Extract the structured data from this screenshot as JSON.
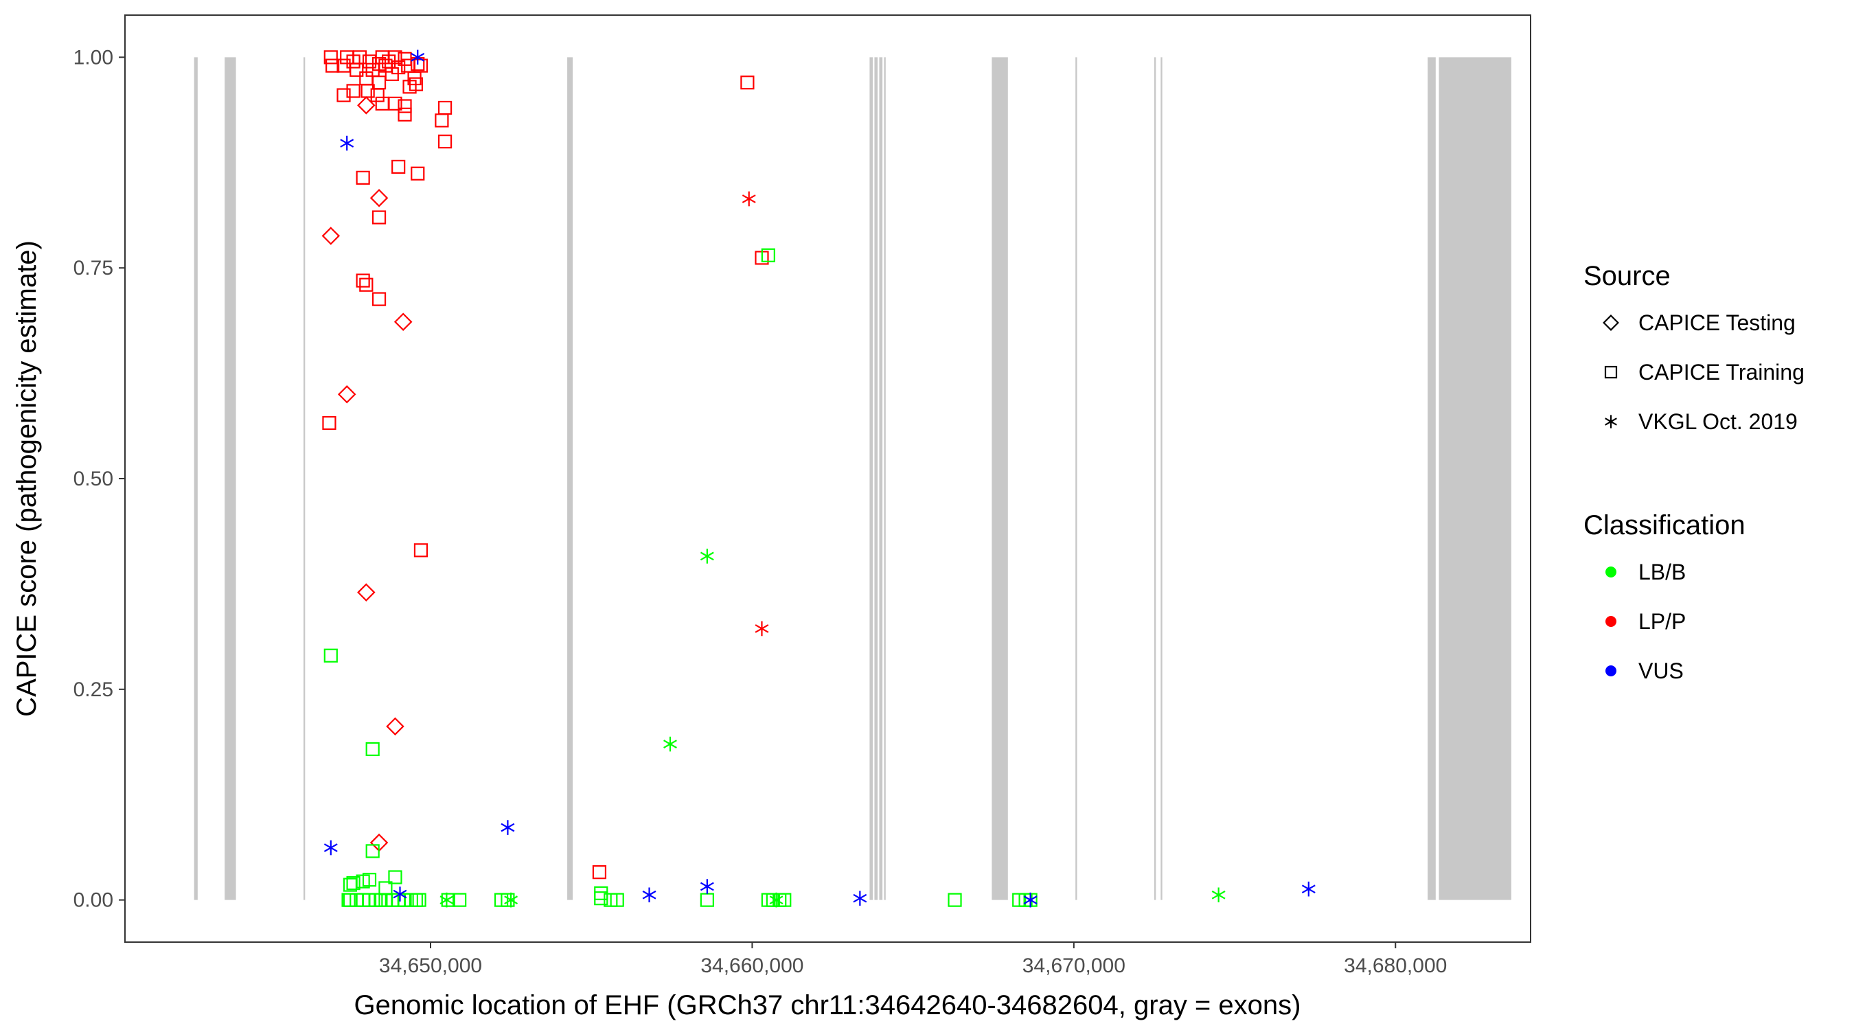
{
  "chart_data": {
    "type": "scatter",
    "xlabel": "Genomic location of EHF (GRCh37 chr11:34642640-34682604, gray = exons)",
    "ylabel": "CAPICE score (pathogenicity estimate)",
    "xlim": [
      34640500,
      34684200
    ],
    "ylim": [
      -0.05,
      1.05
    ],
    "x_ticks": [
      34650000,
      34660000,
      34670000,
      34680000
    ],
    "x_tick_labels": [
      "34,650,000",
      "34,660,000",
      "34,670,000",
      "34,680,000"
    ],
    "y_ticks": [
      0,
      0.25,
      0.5,
      0.75,
      1.0
    ],
    "y_tick_labels": [
      "0.00",
      "0.25",
      "0.50",
      "0.75",
      "1.00"
    ],
    "grid": false,
    "exons": [
      [
        34642650,
        34642760
      ],
      [
        34643600,
        34643950
      ],
      [
        34646050,
        34646100
      ],
      [
        34654250,
        34654420
      ],
      [
        34663650,
        34663750
      ],
      [
        34663800,
        34663900
      ],
      [
        34663950,
        34664050
      ],
      [
        34664100,
        34664150
      ],
      [
        34667450,
        34667950
      ],
      [
        34670050,
        34670100
      ],
      [
        34672500,
        34672550
      ],
      [
        34672700,
        34672750
      ],
      [
        34681000,
        34681250
      ],
      [
        34681350,
        34683600
      ]
    ],
    "legend": {
      "position": "right",
      "source_title": "Source",
      "source_items": [
        {
          "label": "CAPICE Testing",
          "shape": "diamond"
        },
        {
          "label": "CAPICE Training",
          "shape": "square"
        },
        {
          "label": "VKGL Oct. 2019",
          "shape": "asterisk"
        }
      ],
      "class_title": "Classification",
      "class_items": [
        {
          "label": "LB/B",
          "color": "#00ff00"
        },
        {
          "label": "LP/P",
          "color": "#ff0000"
        },
        {
          "label": "VUS",
          "color": "#0000ff"
        }
      ]
    },
    "series": [
      {
        "source": "CAPICE Training",
        "classification": "LP/P",
        "color": "#ff0000",
        "shape": "square",
        "points": [
          [
            34646900,
            1.0
          ],
          [
            34647400,
            1.0
          ],
          [
            34647600,
            0.995
          ],
          [
            34647800,
            1.0
          ],
          [
            34648100,
            0.995
          ],
          [
            34648400,
            0.992
          ],
          [
            34648500,
            1.0
          ],
          [
            34648700,
            0.995
          ],
          [
            34648900,
            1.0
          ],
          [
            34649200,
            0.998
          ],
          [
            34649300,
            0.99
          ],
          [
            34646950,
            0.99
          ],
          [
            34647300,
            0.99
          ],
          [
            34647700,
            0.985
          ],
          [
            34648200,
            0.985
          ],
          [
            34648600,
            0.99
          ],
          [
            34649000,
            0.988
          ],
          [
            34649600,
            0.992
          ],
          [
            34649700,
            0.99
          ],
          [
            34648000,
            0.975
          ],
          [
            34648400,
            0.97
          ],
          [
            34648800,
            0.98
          ],
          [
            34649500,
            0.975
          ],
          [
            34649550,
            0.968
          ],
          [
            34649350,
            0.965
          ],
          [
            34648050,
            0.96
          ],
          [
            34648350,
            0.955
          ],
          [
            34647300,
            0.955
          ],
          [
            34647600,
            0.96
          ],
          [
            34648500,
            0.945
          ],
          [
            34648900,
            0.945
          ],
          [
            34649200,
            0.942
          ],
          [
            34649200,
            0.932
          ],
          [
            34650450,
            0.94
          ],
          [
            34650350,
            0.925
          ],
          [
            34650450,
            0.9
          ],
          [
            34659850,
            0.97
          ],
          [
            34649000,
            0.87
          ],
          [
            34649600,
            0.862
          ],
          [
            34647900,
            0.857
          ],
          [
            34648400,
            0.81
          ],
          [
            34660300,
            0.762
          ],
          [
            34647900,
            0.735
          ],
          [
            34648000,
            0.73
          ],
          [
            34648400,
            0.713
          ],
          [
            34646850,
            0.566
          ],
          [
            34649700,
            0.415
          ],
          [
            34655250,
            0.033
          ]
        ]
      },
      {
        "source": "CAPICE Testing",
        "classification": "LP/P",
        "color": "#ff0000",
        "shape": "diamond",
        "points": [
          [
            34648000,
            0.943
          ],
          [
            34648400,
            0.833
          ],
          [
            34646900,
            0.788
          ],
          [
            34649150,
            0.686
          ],
          [
            34647400,
            0.6
          ],
          [
            34648000,
            0.365
          ],
          [
            34648900,
            0.206
          ],
          [
            34648400,
            0.068
          ]
        ]
      },
      {
        "source": "VKGL Oct. 2019",
        "classification": "LP/P",
        "color": "#ff0000",
        "shape": "asterisk",
        "points": [
          [
            34659900,
            0.832
          ],
          [
            34660300,
            0.322
          ]
        ]
      },
      {
        "source": "CAPICE Training",
        "classification": "LB/B",
        "color": "#00ff00",
        "shape": "square",
        "points": [
          [
            34660500,
            0.765
          ],
          [
            34646900,
            0.29
          ],
          [
            34648200,
            0.179
          ],
          [
            34648200,
            0.058
          ],
          [
            34648900,
            0.027
          ],
          [
            34647500,
            0.018
          ],
          [
            34647600,
            0.02
          ],
          [
            34647900,
            0.022
          ],
          [
            34648100,
            0.024
          ],
          [
            34648600,
            0.014
          ],
          [
            34647450,
            0.0
          ],
          [
            34647500,
            0.0
          ],
          [
            34647700,
            0.0
          ],
          [
            34647900,
            0.0
          ],
          [
            34648100,
            0.0
          ],
          [
            34648300,
            0.0
          ],
          [
            34648450,
            0.0
          ],
          [
            34648600,
            0.0
          ],
          [
            34648800,
            0.0
          ],
          [
            34649000,
            0.0
          ],
          [
            34649200,
            0.0
          ],
          [
            34649400,
            0.0
          ],
          [
            34649550,
            0.0
          ],
          [
            34649650,
            0.0
          ],
          [
            34650550,
            0.0
          ],
          [
            34650900,
            0.0
          ],
          [
            34652200,
            0.0
          ],
          [
            34652400,
            0.0
          ],
          [
            34655300,
            0.008
          ],
          [
            34655300,
            0.002
          ],
          [
            34655600,
            0.0
          ],
          [
            34655800,
            0.0
          ],
          [
            34658600,
            0.0
          ],
          [
            34660500,
            0.0
          ],
          [
            34660650,
            0.0
          ],
          [
            34660850,
            0.0
          ],
          [
            34661000,
            0.0
          ],
          [
            34666300,
            0.0
          ],
          [
            34668300,
            0.0
          ],
          [
            34668500,
            0.0
          ],
          [
            34668650,
            0.0
          ]
        ]
      },
      {
        "source": "VKGL Oct. 2019",
        "classification": "LB/B",
        "color": "#00ff00",
        "shape": "asterisk",
        "points": [
          [
            34658600,
            0.408
          ],
          [
            34657450,
            0.185
          ],
          [
            34650500,
            0.0
          ],
          [
            34652500,
            0.0
          ],
          [
            34660750,
            0.0
          ],
          [
            34674500,
            0.006
          ]
        ]
      },
      {
        "source": "VKGL Oct. 2019",
        "classification": "VUS",
        "color": "#0000ff",
        "shape": "asterisk",
        "points": [
          [
            34649600,
            1.0
          ],
          [
            34647400,
            0.898
          ],
          [
            34646900,
            0.062
          ],
          [
            34652400,
            0.086
          ],
          [
            34649050,
            0.007
          ],
          [
            34656800,
            0.006
          ],
          [
            34658600,
            0.016
          ],
          [
            34663350,
            0.002
          ],
          [
            34668650,
            0.0
          ],
          [
            34677300,
            0.013
          ]
        ]
      }
    ]
  }
}
